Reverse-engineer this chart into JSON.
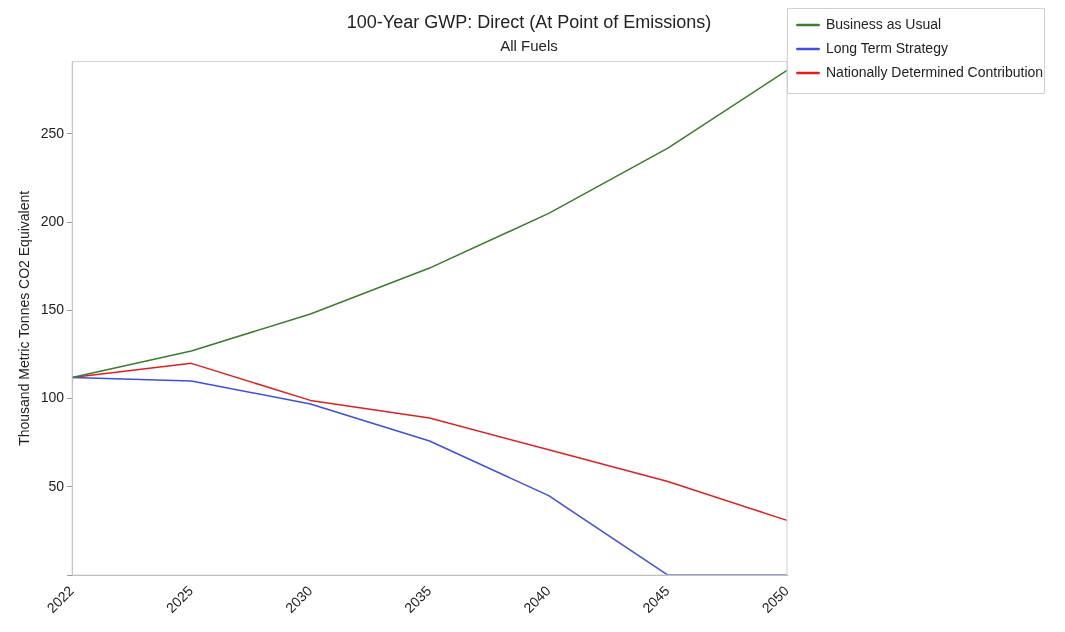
{
  "chart_data": {
    "type": "line",
    "title": "100-Year GWP: Direct (At Point of Emissions)",
    "subtitle": "All Fuels",
    "ylabel": "Thousand Metric Tonnes CO2 Equivalent",
    "categories": [
      "2022",
      "2025",
      "2030",
      "2035",
      "2040",
      "2045",
      "2050"
    ],
    "series": [
      {
        "name": "Business as Usual",
        "color": "#3a7d2a",
        "values": [
          112,
          127,
          148,
          174,
          205,
          242,
          286
        ]
      },
      {
        "name": "Long Term Strategy",
        "color": "#3c4fe0",
        "values": [
          112,
          110,
          97,
          76,
          45,
          0,
          0
        ]
      },
      {
        "name": "Nationally Determined Contribution",
        "color": "#e0201f",
        "values": [
          112,
          120,
          99,
          89,
          71,
          53,
          31
        ]
      }
    ],
    "ylim": [
      0,
      291
    ],
    "yticks": [
      {
        "value": 0,
        "label": null
      },
      50,
      100,
      150,
      200,
      250
    ],
    "grid": false,
    "legend": "top right",
    "marker": "none",
    "line_style": "solid"
  }
}
